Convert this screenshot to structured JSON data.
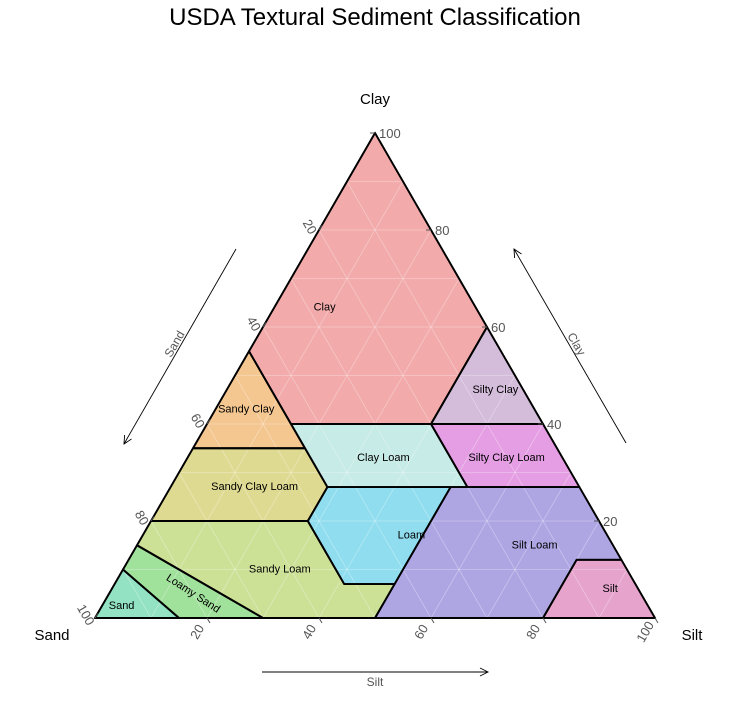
{
  "chart_data": {
    "type": "ternary",
    "title": "USDA Textural Sediment Classification",
    "corners": {
      "top": "Clay",
      "left": "Sand",
      "right": "Silt"
    },
    "axes": {
      "clay": {
        "label": "Clay",
        "ticks": [
          20,
          40,
          60,
          80,
          100
        ]
      },
      "sand": {
        "label": "Sand",
        "ticks": [
          20,
          40,
          60,
          80,
          100
        ]
      },
      "silt": {
        "label": "Silt",
        "ticks": [
          20,
          40,
          60,
          80,
          100
        ]
      }
    },
    "grid": true,
    "regions": [
      {
        "name": "Clay",
        "color": "#F09B9B",
        "vertices": [
          [
            0,
            100,
            0
          ],
          [
            40,
            60,
            0
          ],
          [
            45,
            55,
            0
          ],
          [
            45,
            40,
            15
          ],
          [
            20,
            40,
            40
          ],
          [
            0,
            60,
            40
          ]
        ]
      },
      {
        "name": "Silty Clay",
        "color": "#CDB0D5",
        "vertices": [
          [
            0,
            60,
            40
          ],
          [
            0,
            40,
            60
          ],
          [
            20,
            40,
            40
          ]
        ]
      },
      {
        "name": "Sandy Clay",
        "color": "#F2BC7C",
        "vertices": [
          [
            45,
            55,
            0
          ],
          [
            65,
            35,
            0
          ],
          [
            45,
            35,
            20
          ]
        ]
      },
      {
        "name": "Clay Loam",
        "color": "#BDE8E2",
        "vertices": [
          [
            45,
            40,
            15
          ],
          [
            20,
            40,
            40
          ],
          [
            20,
            27,
            53
          ],
          [
            45,
            27,
            28
          ]
        ]
      },
      {
        "name": "Silty Clay Loam",
        "color": "#E08DDF",
        "vertices": [
          [
            20,
            40,
            40
          ],
          [
            0,
            40,
            60
          ],
          [
            0,
            27,
            73
          ],
          [
            20,
            27,
            53
          ]
        ]
      },
      {
        "name": "Sandy Clay Loam",
        "color": "#D9D37E",
        "vertices": [
          [
            65,
            35,
            0
          ],
          [
            45,
            35,
            20
          ],
          [
            45,
            27,
            28
          ],
          [
            52,
            20,
            28
          ],
          [
            80,
            20,
            0
          ]
        ]
      },
      {
        "name": "Loam",
        "color": "#7BD7EC",
        "vertices": [
          [
            45,
            27,
            28
          ],
          [
            23,
            27,
            50
          ],
          [
            43,
            7,
            50
          ],
          [
            52,
            7,
            41
          ],
          [
            52,
            20,
            28
          ]
        ]
      },
      {
        "name": "Silt Loam",
        "color": "#A095DE",
        "vertices": [
          [
            23,
            27,
            50
          ],
          [
            0,
            27,
            73
          ],
          [
            0,
            12,
            88
          ],
          [
            8,
            12,
            80
          ],
          [
            20,
            0,
            80
          ],
          [
            50,
            0,
            50
          ],
          [
            43,
            7,
            50
          ]
        ]
      },
      {
        "name": "Silt",
        "color": "#E293C3",
        "vertices": [
          [
            0,
            12,
            88
          ],
          [
            0,
            0,
            100
          ],
          [
            20,
            0,
            80
          ],
          [
            8,
            12,
            80
          ]
        ]
      },
      {
        "name": "Sandy Loam",
        "color": "#C3DB84",
        "vertices": [
          [
            80,
            20,
            0
          ],
          [
            52,
            20,
            28
          ],
          [
            52,
            7,
            41
          ],
          [
            43,
            7,
            50
          ],
          [
            50,
            0,
            50
          ],
          [
            70,
            0,
            30
          ],
          [
            85,
            15,
            0
          ]
        ]
      },
      {
        "name": "Loamy Sand",
        "color": "#8FDC89",
        "vertices": [
          [
            85,
            15,
            0
          ],
          [
            70,
            0,
            30
          ],
          [
            85,
            0,
            15
          ],
          [
            90,
            10,
            0
          ]
        ]
      },
      {
        "name": "Sand",
        "color": "#7FDDB8",
        "vertices": [
          [
            90,
            10,
            0
          ],
          [
            85,
            0,
            15
          ],
          [
            100,
            0,
            0
          ]
        ]
      }
    ],
    "labels": [
      {
        "name": "Clay",
        "sand": 27,
        "clay": 64,
        "silt": 9
      },
      {
        "name": "Silty Clay",
        "sand": 5,
        "clay": 47,
        "silt": 48
      },
      {
        "name": "Sandy Clay",
        "sand": 51.5,
        "clay": 43,
        "silt": 5.5
      },
      {
        "name": "Clay Loam",
        "sand": 32,
        "clay": 33,
        "silt": 35
      },
      {
        "name": "Silty Clay Loam",
        "sand": 10,
        "clay": 33,
        "silt": 57
      },
      {
        "name": "Sandy Clay Loam",
        "sand": 58,
        "clay": 27,
        "silt": 15
      },
      {
        "name": "Loam",
        "sand": 35,
        "clay": 17,
        "silt": 48
      },
      {
        "name": "Silt Loam",
        "sand": 14,
        "clay": 15,
        "silt": 71
      },
      {
        "name": "Silt",
        "sand": 5,
        "clay": 6,
        "silt": 89
      },
      {
        "name": "Sandy Loam",
        "sand": 62,
        "clay": 10,
        "silt": 28
      },
      {
        "name": "Loamy Sand",
        "sand": 80,
        "clay": 5,
        "silt": 15,
        "rotate": 33
      },
      {
        "name": "Sand",
        "sand": 94,
        "clay": 2.5,
        "silt": 3.5
      }
    ]
  }
}
